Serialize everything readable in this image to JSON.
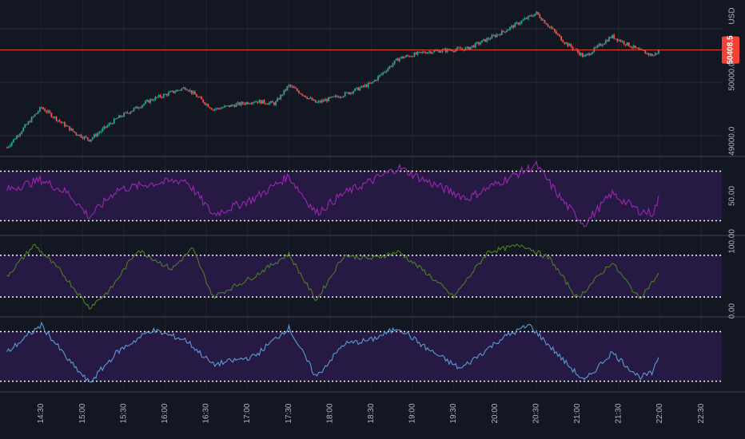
{
  "chart_data": {
    "type": "candlestick+indicators",
    "symbol_unit": "USD",
    "price_pane": {
      "unit_label": "USD",
      "y_ticks": [
        {
          "value": 50000,
          "label": "50000.0"
        },
        {
          "value": 49000,
          "label": "49000.0"
        }
      ],
      "last_price": {
        "value": 50408.5,
        "label": "50408.5"
      },
      "ylim": [
        48800,
        51180
      ],
      "key_closes": [
        {
          "time": "14:05",
          "close": 48900
        },
        {
          "time": "14:30",
          "close": 49520
        },
        {
          "time": "14:55",
          "close": 49120
        },
        {
          "time": "15:05",
          "close": 49020
        },
        {
          "time": "15:25",
          "close": 49350
        },
        {
          "time": "15:50",
          "close": 49640
        },
        {
          "time": "16:15",
          "close": 49830
        },
        {
          "time": "16:35",
          "close": 49490
        },
        {
          "time": "17:05",
          "close": 49620
        },
        {
          "time": "17:20",
          "close": 49580
        },
        {
          "time": "17:30",
          "close": 49860
        },
        {
          "time": "17:50",
          "close": 49590
        },
        {
          "time": "18:10",
          "close": 49720
        },
        {
          "time": "18:30",
          "close": 49890
        },
        {
          "time": "18:50",
          "close": 50280
        },
        {
          "time": "19:10",
          "close": 50380
        },
        {
          "time": "19:40",
          "close": 50430
        },
        {
          "time": "20:05",
          "close": 50680
        },
        {
          "time": "20:30",
          "close": 50980
        },
        {
          "time": "20:50",
          "close": 50540
        },
        {
          "time": "21:05",
          "close": 50300
        },
        {
          "time": "21:25",
          "close": 50620
        },
        {
          "time": "21:45",
          "close": 50400
        },
        {
          "time": "21:55",
          "close": 50320
        },
        {
          "time": "22:00",
          "close": 50408
        }
      ]
    },
    "indicator_1": {
      "color": "#9c27b0",
      "band_upper": 70,
      "band_lower": 30,
      "ylim": [
        20,
        80
      ],
      "y_ticks": [
        {
          "value": 50,
          "label": "50.00"
        }
      ],
      "key_values": [
        {
          "time": "14:05",
          "value": 55
        },
        {
          "time": "14:30",
          "value": 63
        },
        {
          "time": "14:50",
          "value": 52
        },
        {
          "time": "15:05",
          "value": 33
        },
        {
          "time": "15:25",
          "value": 55
        },
        {
          "time": "15:50",
          "value": 60
        },
        {
          "time": "16:15",
          "value": 63
        },
        {
          "time": "16:35",
          "value": 35
        },
        {
          "time": "17:05",
          "value": 48
        },
        {
          "time": "17:30",
          "value": 66
        },
        {
          "time": "17:50",
          "value": 36
        },
        {
          "time": "18:10",
          "value": 52
        },
        {
          "time": "18:30",
          "value": 62
        },
        {
          "time": "18:50",
          "value": 73
        },
        {
          "time": "19:10",
          "value": 62
        },
        {
          "time": "19:40",
          "value": 48
        },
        {
          "time": "20:05",
          "value": 62
        },
        {
          "time": "20:30",
          "value": 75
        },
        {
          "time": "20:50",
          "value": 45
        },
        {
          "time": "21:05",
          "value": 27
        },
        {
          "time": "21:25",
          "value": 52
        },
        {
          "time": "21:45",
          "value": 38
        },
        {
          "time": "21:55",
          "value": 36
        },
        {
          "time": "22:00",
          "value": 50
        }
      ]
    },
    "indicator_2": {
      "color": "#4a7f1e",
      "band_upper": 80,
      "band_lower": 20,
      "ylim": [
        -5,
        105
      ],
      "y_ticks": [
        {
          "value": 100,
          "label": "100.00"
        },
        {
          "value": 0,
          "label": "0.00"
        }
      ],
      "key_values": [
        {
          "time": "14:05",
          "value": 50
        },
        {
          "time": "14:25",
          "value": 95
        },
        {
          "time": "14:45",
          "value": 55
        },
        {
          "time": "15:05",
          "value": 5
        },
        {
          "time": "15:20",
          "value": 30
        },
        {
          "time": "15:40",
          "value": 88
        },
        {
          "time": "16:05",
          "value": 60
        },
        {
          "time": "16:20",
          "value": 90
        },
        {
          "time": "16:35",
          "value": 20
        },
        {
          "time": "17:05",
          "value": 50
        },
        {
          "time": "17:30",
          "value": 82
        },
        {
          "time": "17:50",
          "value": 15
        },
        {
          "time": "18:10",
          "value": 80
        },
        {
          "time": "18:30",
          "value": 75
        },
        {
          "time": "18:50",
          "value": 85
        },
        {
          "time": "19:10",
          "value": 55
        },
        {
          "time": "19:30",
          "value": 20
        },
        {
          "time": "19:55",
          "value": 85
        },
        {
          "time": "20:20",
          "value": 95
        },
        {
          "time": "20:40",
          "value": 75
        },
        {
          "time": "21:00",
          "value": 18
        },
        {
          "time": "21:25",
          "value": 70
        },
        {
          "time": "21:45",
          "value": 18
        },
        {
          "time": "22:00",
          "value": 55
        }
      ]
    },
    "indicator_3": {
      "color": "#5b9bd5",
      "band_upper": 80,
      "band_lower": 20,
      "ylim": [
        10,
        95
      ],
      "key_values": [
        {
          "time": "14:05",
          "value": 55
        },
        {
          "time": "14:30",
          "value": 88
        },
        {
          "time": "14:50",
          "value": 45
        },
        {
          "time": "15:05",
          "value": 18
        },
        {
          "time": "15:25",
          "value": 55
        },
        {
          "time": "15:50",
          "value": 82
        },
        {
          "time": "16:15",
          "value": 70
        },
        {
          "time": "16:35",
          "value": 40
        },
        {
          "time": "17:05",
          "value": 50
        },
        {
          "time": "17:30",
          "value": 85
        },
        {
          "time": "17:50",
          "value": 25
        },
        {
          "time": "18:10",
          "value": 65
        },
        {
          "time": "18:30",
          "value": 70
        },
        {
          "time": "18:50",
          "value": 85
        },
        {
          "time": "19:10",
          "value": 60
        },
        {
          "time": "19:35",
          "value": 35
        },
        {
          "time": "20:05",
          "value": 72
        },
        {
          "time": "20:25",
          "value": 88
        },
        {
          "time": "20:50",
          "value": 45
        },
        {
          "time": "21:05",
          "value": 20
        },
        {
          "time": "21:25",
          "value": 55
        },
        {
          "time": "21:45",
          "value": 25
        },
        {
          "time": "21:55",
          "value": 30
        },
        {
          "time": "22:00",
          "value": 55
        }
      ]
    },
    "x_ticks": [
      "14:30",
      "15:00",
      "15:30",
      "16:00",
      "16:30",
      "17:00",
      "17:30",
      "18:00",
      "18:30",
      "19:00",
      "19:30",
      "20:00",
      "20:30",
      "21:00",
      "21:30",
      "22:00",
      "22:30"
    ],
    "x_start": "14:00",
    "x_end": "22:45",
    "colors": {
      "background": "#131722",
      "up_candle": "#26a69a",
      "down_candle": "#ef5350",
      "price_line": "#f44336",
      "band_fill": "#2a1a4a",
      "grid": "#2a2e39",
      "band_line": "#ffffff"
    }
  }
}
